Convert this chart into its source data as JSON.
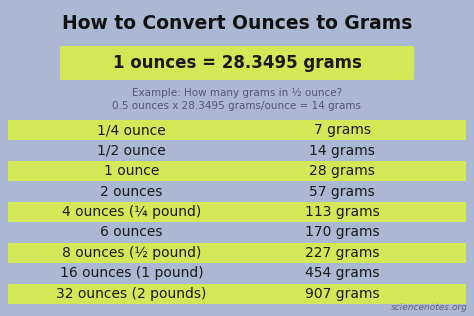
{
  "title": "How to Convert Ounces to Grams",
  "formula": "1 ounces = 28.3495 grams",
  "example_line1": "Example: How many grams in ½ ounce?",
  "example_line2": "0.5 ounces x 28.3495 grams/ounce = 14 grams",
  "rows": [
    {
      "ounce": "1/4 ounce",
      "gram": "7 grams",
      "highlight": true
    },
    {
      "ounce": "1/2 ounce",
      "gram": "14 grams",
      "highlight": false
    },
    {
      "ounce": "1 ounce",
      "gram": "28 grams",
      "highlight": true
    },
    {
      "ounce": "2 ounces",
      "gram": "57 grams",
      "highlight": false
    },
    {
      "ounce": "4 ounces (¼ pound)",
      "gram": "113 grams",
      "highlight": true
    },
    {
      "ounce": "6 ounces",
      "gram": "170 grams",
      "highlight": false
    },
    {
      "ounce": "8 ounces (½ pound)",
      "gram": "227 grams",
      "highlight": true
    },
    {
      "ounce": "16 ounces (1 pound)",
      "gram": "454 grams",
      "highlight": false
    },
    {
      "ounce": "32 ounces (2 pounds)",
      "gram": "907 grams",
      "highlight": true
    }
  ],
  "bg_color": "#aab8d4",
  "highlight_color": "#d4e857",
  "formula_bg": "#d4e857",
  "text_color": "#1a1a1a",
  "example_color": "#555577",
  "title_color": "#111111",
  "watermark": "sciencenotes.org",
  "title_fontsize": 13.5,
  "formula_fontsize": 12,
  "example_fontsize": 7.5,
  "row_fontsize": 10,
  "watermark_fontsize": 6.5
}
